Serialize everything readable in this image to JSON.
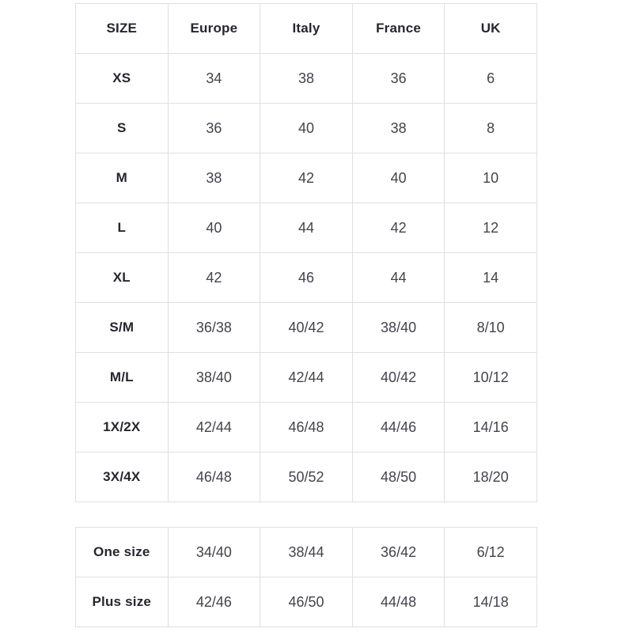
{
  "colors": {
    "border": "#e0e0e0",
    "heading_text": "#26262f",
    "value_text": "#43434d",
    "background": "#ffffff"
  },
  "table1": {
    "headers": [
      "SIZE",
      "Europe",
      "Italy",
      "France",
      "UK"
    ],
    "rows": [
      {
        "label": "XS",
        "values": [
          "34",
          "38",
          "36",
          "6"
        ]
      },
      {
        "label": "S",
        "values": [
          "36",
          "40",
          "38",
          "8"
        ]
      },
      {
        "label": "M",
        "values": [
          "38",
          "42",
          "40",
          "10"
        ]
      },
      {
        "label": "L",
        "values": [
          "40",
          "44",
          "42",
          "12"
        ]
      },
      {
        "label": "XL",
        "values": [
          "42",
          "46",
          "44",
          "14"
        ]
      },
      {
        "label": "S/M",
        "values": [
          "36/38",
          "40/42",
          "38/40",
          "8/10"
        ]
      },
      {
        "label": "M/L",
        "values": [
          "38/40",
          "42/44",
          "40/42",
          "10/12"
        ]
      },
      {
        "label": "1X/2X",
        "values": [
          "42/44",
          "46/48",
          "44/46",
          "14/16"
        ]
      },
      {
        "label": "3X/4X",
        "values": [
          "46/48",
          "50/52",
          "48/50",
          "18/20"
        ]
      }
    ]
  },
  "table2": {
    "rows": [
      {
        "label": "One size",
        "values": [
          "34/40",
          "38/44",
          "36/42",
          "6/12"
        ]
      },
      {
        "label": "Plus size",
        "values": [
          "42/46",
          "46/50",
          "44/48",
          "14/18"
        ]
      }
    ]
  }
}
